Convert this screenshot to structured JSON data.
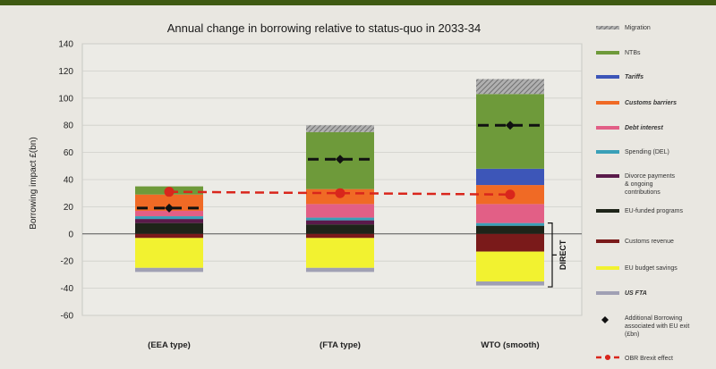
{
  "chart_data": {
    "type": "bar",
    "stacked": true,
    "title": "Annual change in borrowing relative to status-quo in 2033-34",
    "ylabel": "Borrowing impact £(bn)",
    "ylim": [
      -60,
      140
    ],
    "yticks": [
      140,
      120,
      100,
      80,
      60,
      40,
      20,
      0,
      -20,
      -40,
      -60
    ],
    "grid": true,
    "legend_position": "right",
    "categories": [
      "(EEA type)",
      "(FTA type)",
      "WTO (smooth)"
    ],
    "series": [
      {
        "name": "Migration",
        "color": "#8c8c8c",
        "pattern": "hatch",
        "values": [
          0,
          5,
          11
        ]
      },
      {
        "name": "NTBs",
        "color": "#6e9a3a",
        "values": [
          6,
          42,
          55
        ]
      },
      {
        "name": "Tariffs",
        "color": "#3d56b8",
        "values": [
          0,
          0,
          12
        ]
      },
      {
        "name": "Customs barriers",
        "color": "#f06a25",
        "values": [
          12,
          11,
          14
        ]
      },
      {
        "name": "Debt interest",
        "color": "#e25f86",
        "values": [
          4,
          10,
          14
        ]
      },
      {
        "name": "Spending (DEL)",
        "color": "#3aa0b8",
        "values": [
          2,
          2,
          2
        ]
      },
      {
        "name": "Divorce payments & ongoing contributions",
        "color": "#5a1a4a",
        "values": [
          3,
          3,
          0
        ]
      },
      {
        "name": "EU-funded programs",
        "color": "#1e2419",
        "values": [
          8,
          7,
          6
        ]
      },
      {
        "name": "Customs revenue",
        "color": "#7a1a1a",
        "values": [
          -3,
          -3,
          -13
        ]
      },
      {
        "name": "EU budget savings",
        "color": "#f2f230",
        "values": [
          -22,
          -22,
          -22
        ]
      },
      {
        "name": "US FTA",
        "color": "#a0a0b4",
        "values": [
          -3,
          -3,
          -3
        ]
      }
    ],
    "markers": {
      "name": "Additional Borrowing associated with EU exit (£bn)",
      "values": [
        19,
        55,
        80
      ]
    },
    "line": {
      "name": "OBR Brexit effect",
      "values": [
        31,
        30,
        29
      ]
    },
    "annotations": [
      "DIRECT"
    ]
  }
}
